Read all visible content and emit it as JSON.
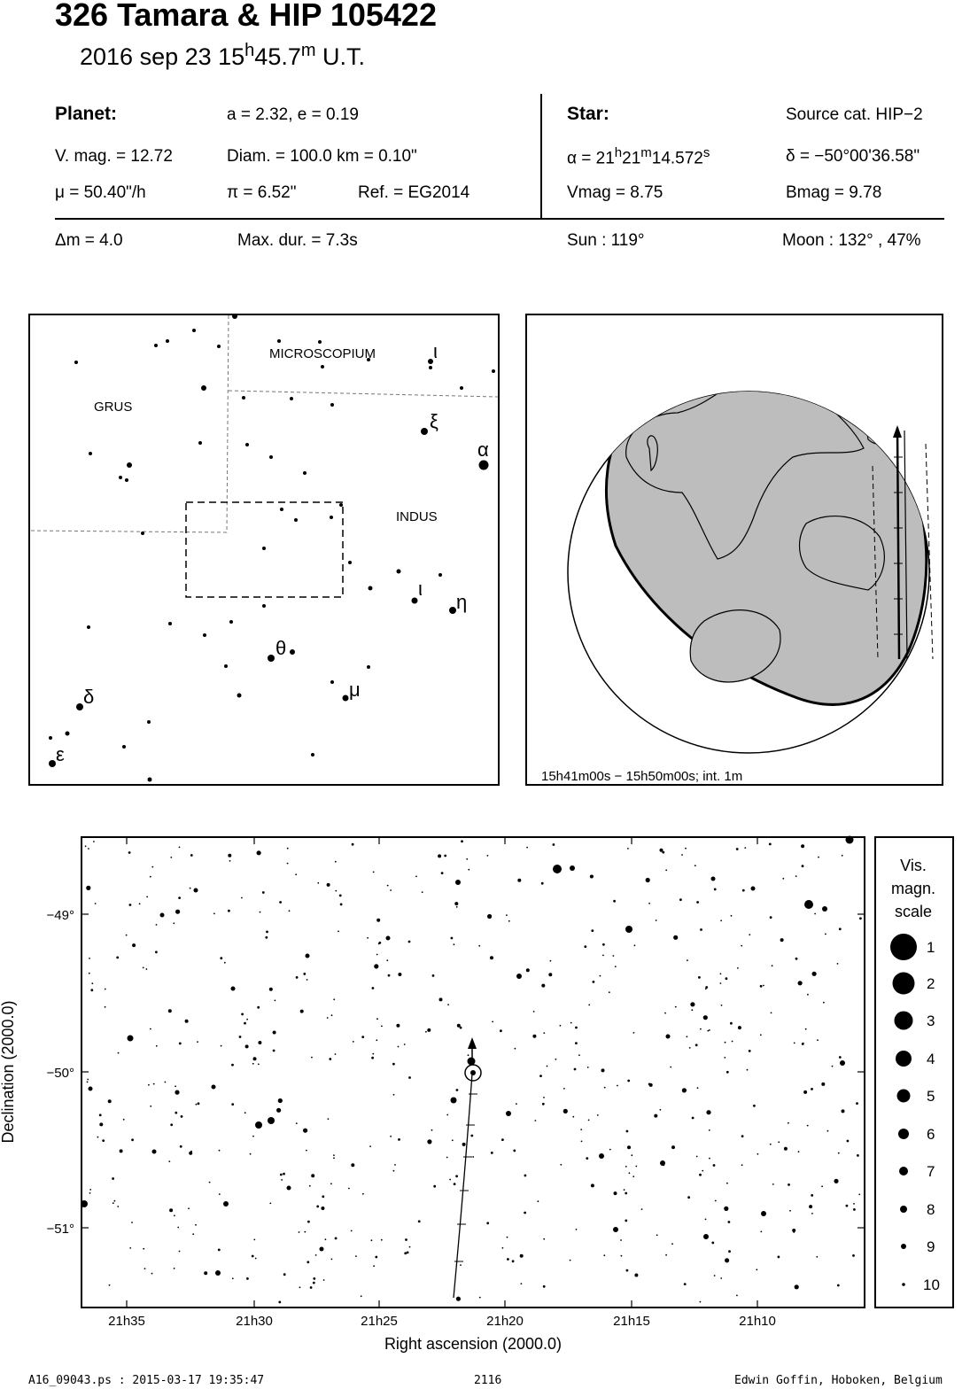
{
  "header": {
    "title": "326 Tamara  &  HIP 105422",
    "date_prefix": "2016 sep 23  15",
    "hour_sup": "h",
    "time_mid": "45.7",
    "min_sup": "m",
    "time_suffix": " U.T."
  },
  "planet": {
    "heading": "Planet:",
    "orbit": "a = 2.32, e = 0.19",
    "vmag": "V. mag. = 12.72",
    "diam": "Diam. = 100.0 km = 0.10\"",
    "mu": "μ =  50.40\"/h",
    "pi": "π =  6.52\"",
    "ref": "Ref. = EG2014"
  },
  "star": {
    "heading": "Star:",
    "source": "Source cat.  HIP−2",
    "ra_prefix": "α = 21",
    "ra_h": "h",
    "ra_m_val": "21",
    "ra_m": "m",
    "ra_s_val": "14.572",
    "ra_s": "s",
    "dec": "δ = −50°00'36.58\"",
    "vmag": "Vmag =  8.75",
    "bmag": "Bmag =  9.78"
  },
  "event": {
    "dm": "Δm = 4.0",
    "maxdur": "Max. dur. = 7.3s",
    "sun": "Sun : 119°",
    "moon": "Moon : 132° , 47%"
  },
  "constellation_map": {
    "labels": {
      "grus": "GRUS",
      "microscopium": "MICROSCOPIUM",
      "indus": "INDUS"
    },
    "greek": {
      "iota_mic": "ι",
      "xi": "ξ",
      "alpha": "α",
      "iota_ind": "ι",
      "eta": "η",
      "theta": "θ",
      "mu": "μ",
      "delta": "δ",
      "epsilon": "ε"
    }
  },
  "globe": {
    "caption": "15h41m00s − 15h50m00s; int.  1m"
  },
  "star_chart": {
    "y_axis_label": "Declination (2000.0)",
    "x_axis_label": "Right ascension (2000.0)",
    "y_ticks": [
      "−49°",
      "−50°",
      "−51°"
    ],
    "x_ticks": [
      "21h35",
      "21h30",
      "21h25",
      "21h20",
      "21h15",
      "21h10"
    ]
  },
  "legend": {
    "title_1": "Vis.",
    "title_2": "magn.",
    "title_3": "scale",
    "items": [
      "1",
      "2",
      "3",
      "4",
      "5",
      "6",
      "7",
      "8",
      "9",
      "10"
    ]
  },
  "footer": {
    "file": "A16_09043.ps : 2015-03-17 19:35:47",
    "number": "2116",
    "author": "Edwin Goffin, Hoboken, Belgium"
  }
}
